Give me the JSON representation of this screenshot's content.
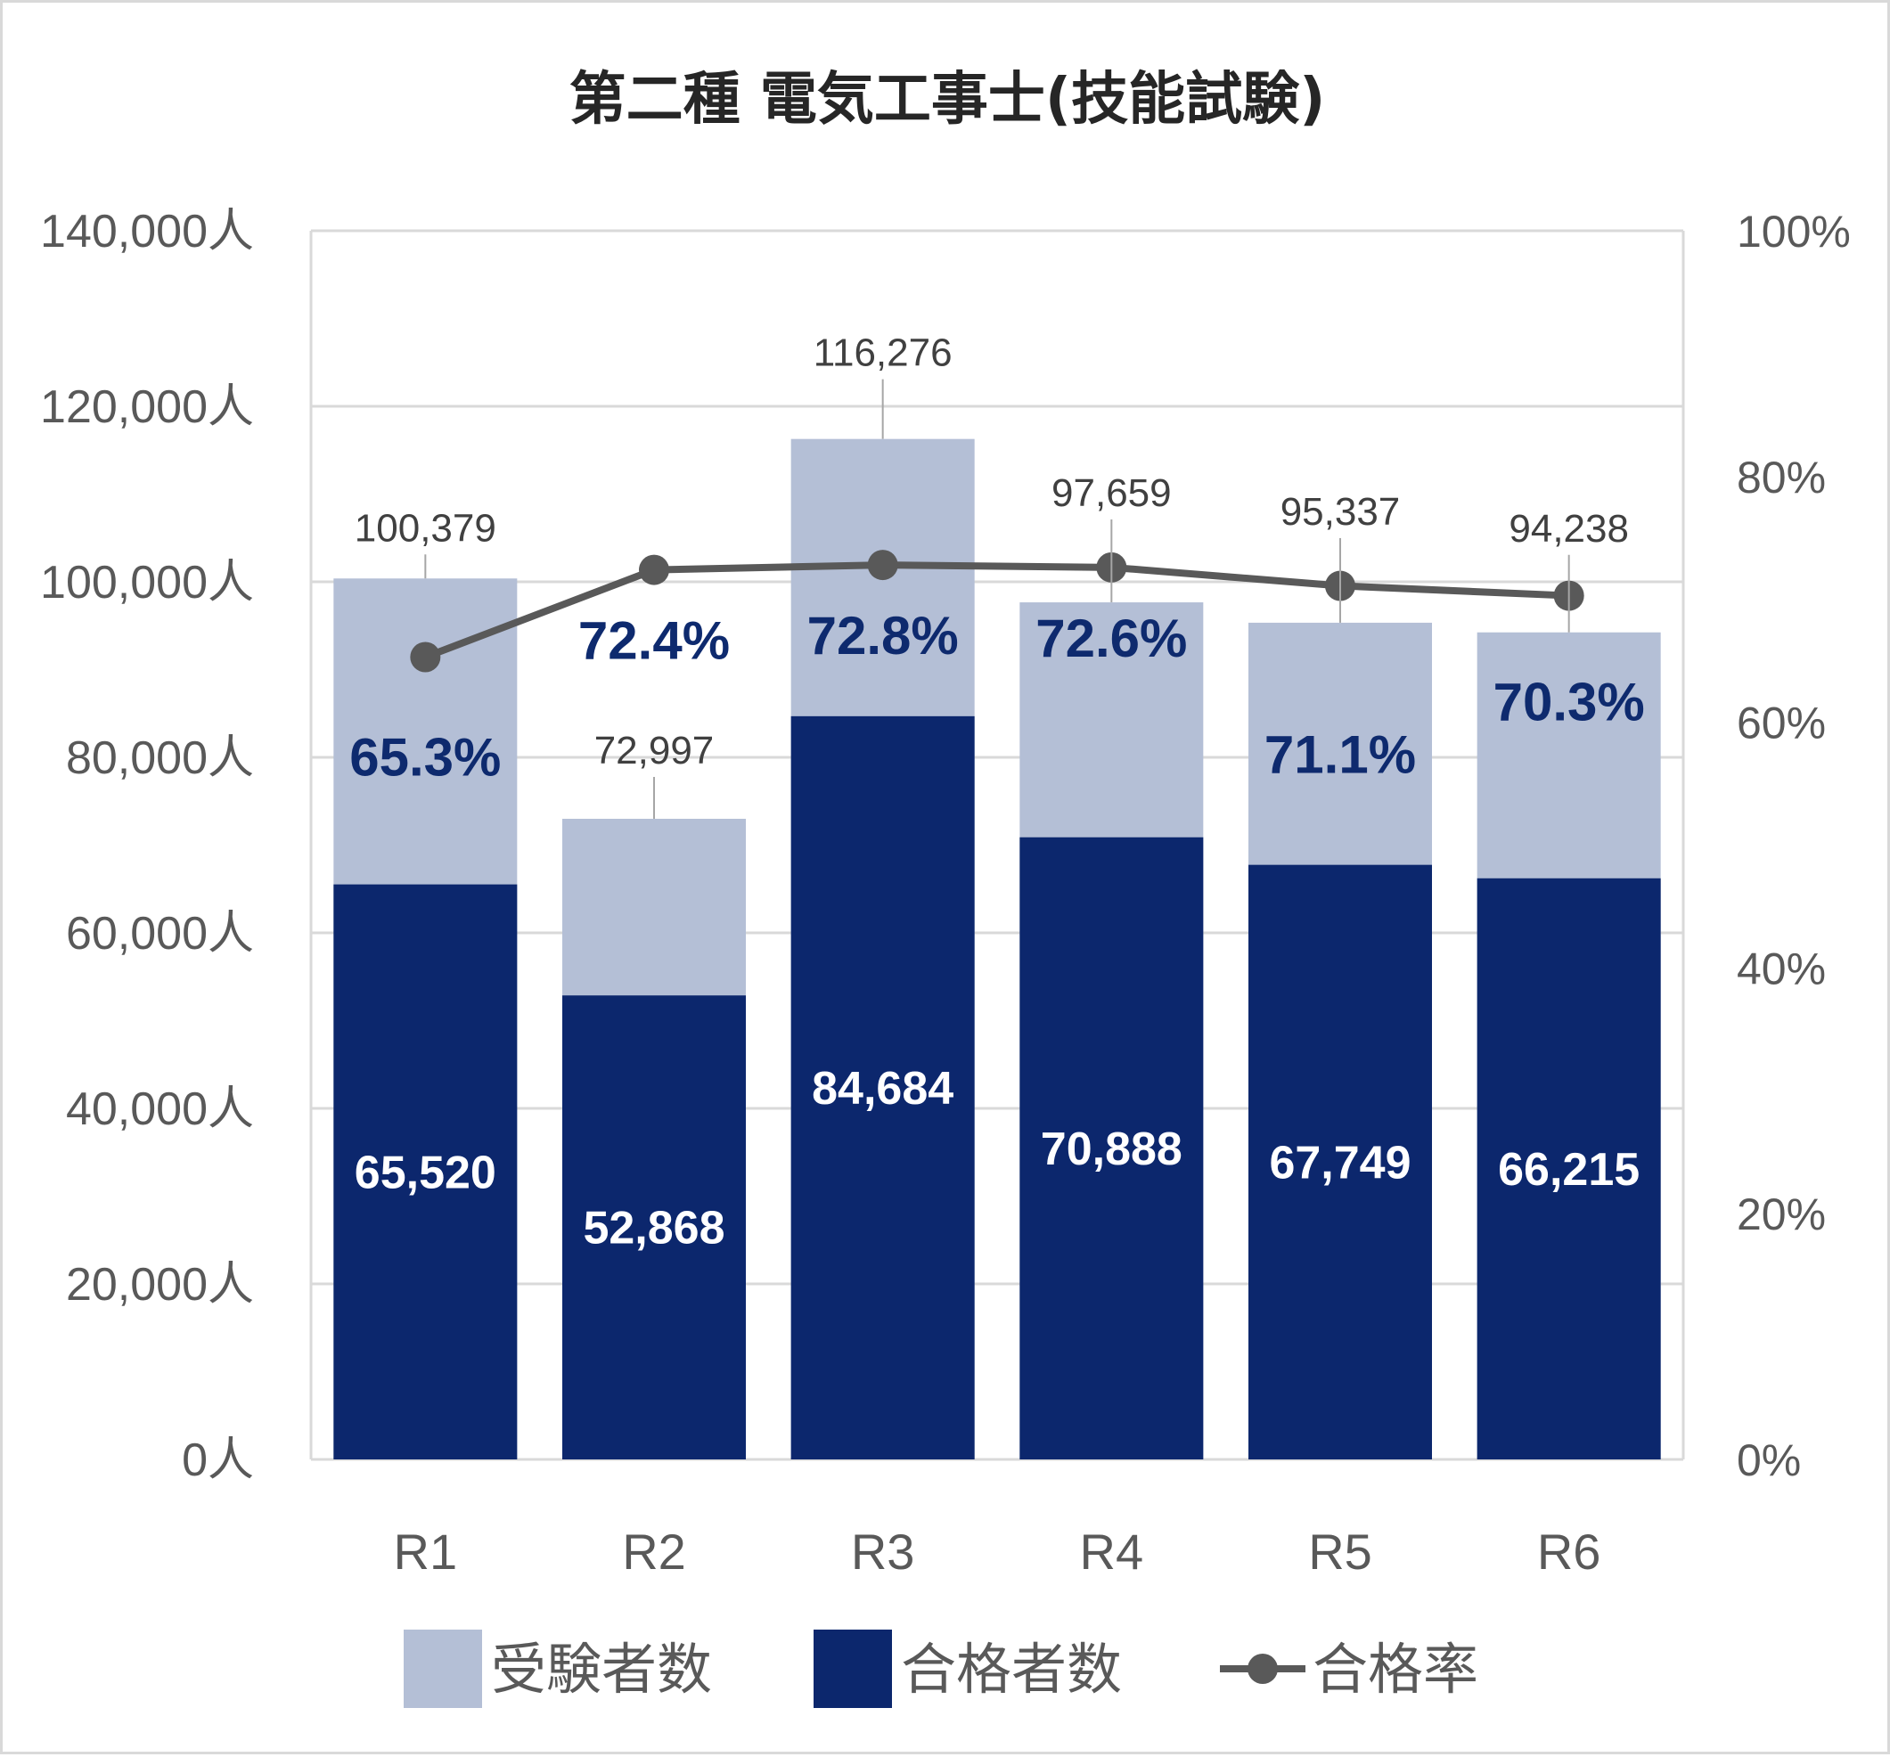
{
  "chart_data": {
    "type": "bar",
    "title": "第二種 電気工事士(技能試験)",
    "categories": [
      "R1",
      "R2",
      "R3",
      "R4",
      "R5",
      "R6"
    ],
    "series": [
      {
        "name": "受験者数",
        "kind": "bar-background",
        "color": "#b4bfd6",
        "values": [
          100379,
          72997,
          116276,
          97659,
          95337,
          94238
        ],
        "labels": [
          "100,379",
          "72,997",
          "116,276",
          "97,659",
          "95,337",
          "94,238"
        ]
      },
      {
        "name": "合格者数",
        "kind": "bar-foreground",
        "color": "#0c276d",
        "values": [
          65520,
          52868,
          84684,
          70888,
          67749,
          66215
        ],
        "labels": [
          "65,520",
          "52,868",
          "84,684",
          "70,888",
          "67,749",
          "66,215"
        ]
      },
      {
        "name": "合格率",
        "kind": "line",
        "axis": "secondary",
        "color": "#595959",
        "values": [
          65.3,
          72.4,
          72.8,
          72.6,
          71.1,
          70.3
        ],
        "labels": [
          "65.3%",
          "72.4%",
          "72.8%",
          "72.6%",
          "71.1%",
          "70.3%"
        ]
      }
    ],
    "ylim": [
      0,
      140000
    ],
    "y_ticks": [
      "0人",
      "20,000人",
      "40,000人",
      "60,000人",
      "80,000人",
      "100,000人",
      "120,000人",
      "140,000人"
    ],
    "y2lim": [
      0,
      100
    ],
    "y2_ticks": [
      "0%",
      "20%",
      "40%",
      "60%",
      "80%",
      "100%"
    ],
    "grid": true,
    "legend_position": "bottom",
    "rate_label_color": "#0e2a6e"
  }
}
